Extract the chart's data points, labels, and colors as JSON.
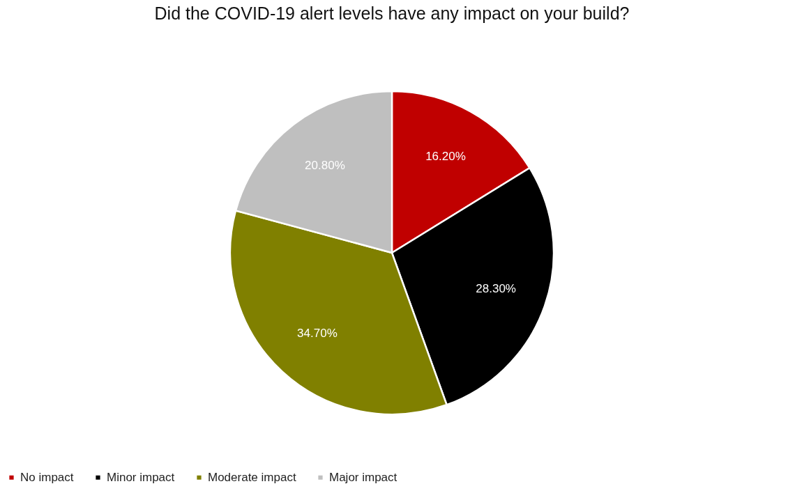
{
  "chart_data": {
    "type": "pie",
    "title": "Did the COVID-19 alert levels have any impact on your build?",
    "categories": [
      "No impact",
      "Minor impact",
      "Moderate impact",
      "Major impact"
    ],
    "values": [
      16.2,
      28.3,
      34.7,
      20.8
    ],
    "value_labels": [
      "16.20%",
      "28.30%",
      "34.70%",
      "20.80%"
    ],
    "colors": [
      "#c00000",
      "#000000",
      "#808000",
      "#bfbfbf"
    ],
    "legend": "bottom"
  }
}
